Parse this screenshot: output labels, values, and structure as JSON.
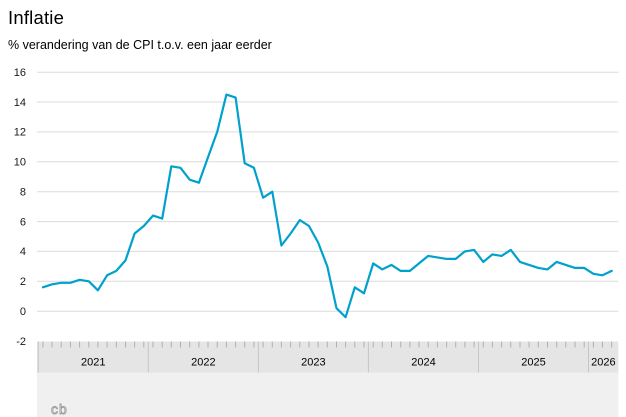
{
  "header": {
    "title": "Inflatie",
    "subtitle": "% verandering van de CPI t.o.v. een jaar eerder"
  },
  "logo": {
    "text": "cb"
  },
  "colors": {
    "line": "#00a1cd",
    "gridline": "#dcdcdc",
    "band_bg": "#e5e5e5",
    "footer_bg": "#f0f0f0",
    "tick": "#b0b0b0",
    "divider": "#c6c6c6",
    "axis_text": "#1a1a1a",
    "logo": "#9e9e9e"
  },
  "chart_data": {
    "type": "line",
    "title": "Inflatie",
    "subtitle": "% verandering van de CPI t.o.v. een jaar eerder",
    "xlabel": "",
    "ylabel": "% verandering van de CPI t.o.v. een jaar eerder",
    "ylim": [
      -2,
      16
    ],
    "y_ticks": [
      16,
      14,
      12,
      10,
      8,
      6,
      4,
      2,
      0,
      -2
    ],
    "grid": "horizontal",
    "legend": "none",
    "x_year_labels": [
      "2021",
      "2022",
      "2023",
      "2024",
      "2025",
      "2026"
    ],
    "series": [
      {
        "name": "Inflatie (CPI, % t.o.v. een jaar eerder)",
        "x": [
          "2021-01",
          "2021-02",
          "2021-03",
          "2021-04",
          "2021-05",
          "2021-06",
          "2021-07",
          "2021-08",
          "2021-09",
          "2021-10",
          "2021-11",
          "2021-12",
          "2022-01",
          "2022-02",
          "2022-03",
          "2022-04",
          "2022-05",
          "2022-06",
          "2022-07",
          "2022-08",
          "2022-09",
          "2022-10",
          "2022-11",
          "2022-12",
          "2023-01",
          "2023-02",
          "2023-03",
          "2023-04",
          "2023-05",
          "2023-06",
          "2023-07",
          "2023-08",
          "2023-09",
          "2023-10",
          "2023-11",
          "2023-12",
          "2024-01",
          "2024-02",
          "2024-03",
          "2024-04",
          "2024-05",
          "2024-06",
          "2024-07",
          "2024-08",
          "2024-09",
          "2024-10",
          "2024-11",
          "2024-12",
          "2025-01",
          "2025-02",
          "2025-03",
          "2025-04",
          "2025-05",
          "2025-06",
          "2025-07",
          "2025-08",
          "2025-09",
          "2025-10",
          "2025-11",
          "2025-12",
          "2026-01",
          "2026-02",
          "2026-03"
        ],
        "values": [
          1.6,
          1.8,
          1.9,
          1.9,
          2.1,
          2.0,
          1.4,
          2.4,
          2.7,
          3.4,
          5.2,
          5.7,
          6.4,
          6.2,
          9.7,
          9.6,
          8.8,
          8.6,
          10.3,
          12.0,
          14.5,
          14.3,
          9.9,
          9.6,
          7.6,
          8.0,
          4.4,
          5.2,
          6.1,
          5.7,
          4.6,
          3.0,
          0.2,
          -0.4,
          1.6,
          1.2,
          3.2,
          2.8,
          3.1,
          2.7,
          2.7,
          3.2,
          3.7,
          3.6,
          3.5,
          3.5,
          4.0,
          4.1,
          3.3,
          3.8,
          3.7,
          4.1,
          3.3,
          3.1,
          2.9,
          2.8,
          3.3,
          3.1,
          2.9,
          2.9,
          2.5,
          2.4,
          2.7
        ]
      }
    ]
  }
}
